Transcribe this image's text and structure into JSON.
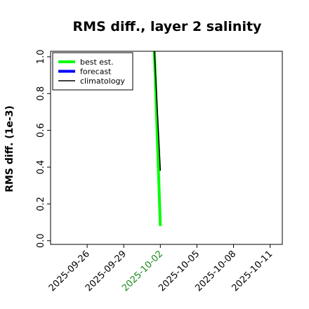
{
  "chart_data": {
    "type": "line",
    "title": "RMS diff., layer 2 salinity",
    "xlabel": "",
    "ylabel": "RMS diff. (1e-3)",
    "ylim": [
      -0.02,
      1.03
    ],
    "yticks": [
      0.0,
      0.2,
      0.4,
      0.6,
      0.8,
      1.0
    ],
    "ytick_labels": [
      "0.0",
      "0.2",
      "0.4",
      "0.6",
      "0.8",
      "1.0"
    ],
    "xlim": [
      "2025-09-23",
      "2025-10-12"
    ],
    "xticks": [
      "2025-09-26",
      "2025-09-29",
      "2025-10-02",
      "2025-10-05",
      "2025-10-08",
      "2025-10-11"
    ],
    "xtick_colors": [
      "#000000",
      "#000000",
      "#1a8a1a",
      "#000000",
      "#000000",
      "#000000"
    ],
    "grid": false,
    "legend_position": "top-left",
    "series": [
      {
        "name": "best est.",
        "color": "#00ff00",
        "points": [
          {
            "x": "2025-10-01T12:00",
            "y": 1.05
          },
          {
            "x": "2025-10-02",
            "y": 0.08
          }
        ]
      },
      {
        "name": "forecast",
        "color": "#0000ff",
        "points": []
      },
      {
        "name": "climatology",
        "color": "#000000",
        "points": [
          {
            "x": "2025-10-01T12:00",
            "y": 1.05
          },
          {
            "x": "2025-10-02",
            "y": 0.38
          }
        ]
      }
    ]
  }
}
